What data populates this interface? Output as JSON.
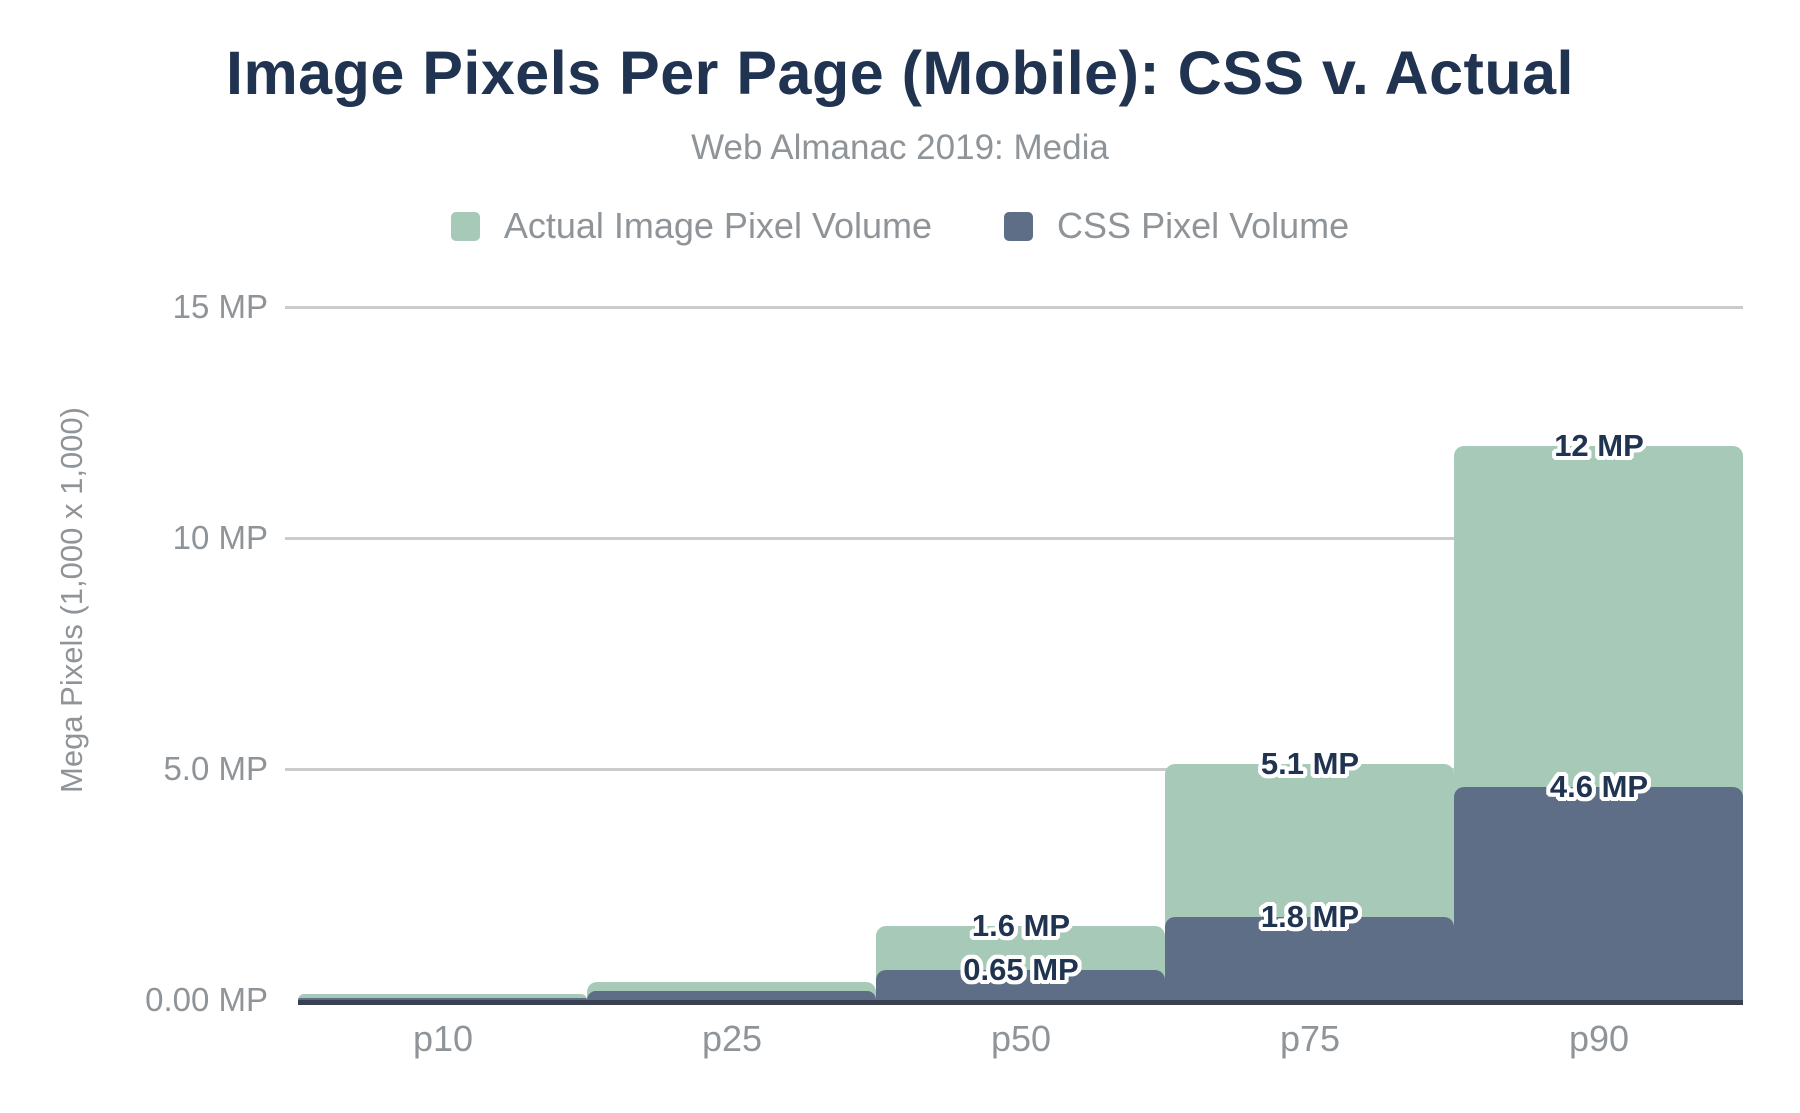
{
  "title": "Image Pixels Per Page (Mobile): CSS v. Actual",
  "subtitle": "Web Almanac 2019: Media",
  "legend": {
    "items": [
      {
        "label": "Actual Image Pixel Volume",
        "color": "#a7c9b8"
      },
      {
        "label": "CSS Pixel Volume",
        "color": "#5e6e87"
      }
    ]
  },
  "colors": {
    "title_navy": "#203351",
    "data_label_navy": "#203351",
    "text_gray": "#8f9499",
    "gridline": "#cbcbcb",
    "axis_line": "#394150",
    "actual_green": "#a7c9b8",
    "css_blue": "#5e6e87",
    "label_outline": "#ffffff",
    "background": "#ffffff"
  },
  "chart_data": {
    "type": "bar",
    "bar_style": "overlapped-full-width-steps",
    "categories": [
      "p10",
      "p25",
      "p50",
      "p75",
      "p90"
    ],
    "series": [
      {
        "name": "Actual Image Pixel Volume",
        "color": "#a7c9b8",
        "values": [
          0.13,
          0.4,
          1.6,
          5.1,
          12
        ],
        "point_labels": [
          "",
          "",
          "1.6 MP",
          "5.1 MP",
          "12 MP"
        ]
      },
      {
        "name": "CSS Pixel Volume",
        "color": "#5e6e87",
        "values": [
          0.05,
          0.2,
          0.65,
          1.8,
          4.6
        ],
        "point_labels": [
          "",
          "",
          "0.65 MP",
          "1.8 MP",
          "4.6 MP"
        ]
      }
    ],
    "title": "Image Pixels Per Page (Mobile): CSS v. Actual",
    "subtitle": "Web Almanac 2019: Media",
    "xlabel": "",
    "ylabel": "Mega Pixels (1,000 x 1,000)",
    "ylim": [
      0,
      15
    ],
    "yticks": [
      {
        "value": 0,
        "label": "0.00 MP"
      },
      {
        "value": 5,
        "label": "5.0 MP"
      },
      {
        "value": 10,
        "label": "10 MP"
      },
      {
        "value": 15,
        "label": "15 MP"
      }
    ],
    "grid": true,
    "legend_position": "top"
  }
}
